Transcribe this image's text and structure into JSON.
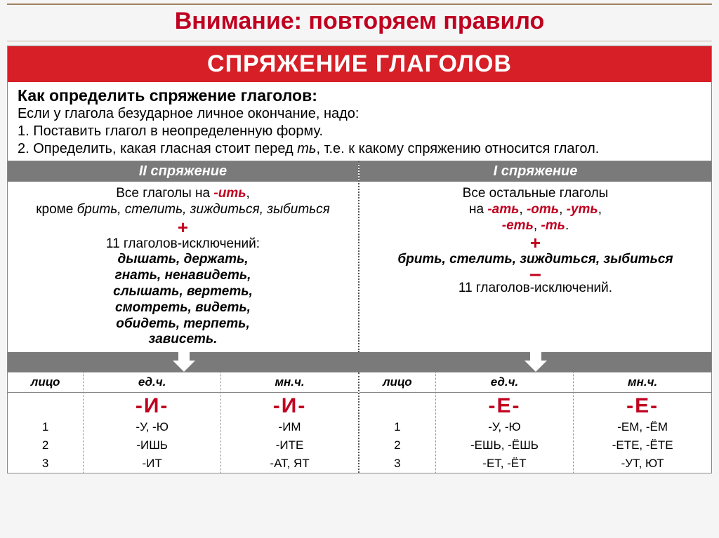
{
  "colors": {
    "title": "#c00020",
    "banner_bg": "#d61f26",
    "banner_fg": "#ffffff",
    "grey_bg": "#7a7a7a",
    "accent": "#c00020"
  },
  "page_title": "Внимание: повторяем правило",
  "banner": "СПРЯЖЕНИЕ ГЛАГОЛОВ",
  "intro": {
    "heading": "Как определить спряжение глаголов:",
    "line1": "Если у глагола безударное личное окончание, надо:",
    "line2": "1. Поставить глагол в неопределенную форму.",
    "line3_a": "2. Определить, какая гласная стоит перед ",
    "line3_em": "ть",
    "line3_b": ", т.е. к какому спряжению относится глагол."
  },
  "left": {
    "header": "II спряжение",
    "l1a": "Все глаголы на ",
    "l1b": "-ить",
    "l1c": ",",
    "l2a": "кроме ",
    "l2b": "брить, стелить, зиждиться, зыбиться",
    "plus": "+",
    "l3": "11 глаголов-исключений:",
    "ex1": "дышать, держать,",
    "ex2": "гнать, ненавидеть,",
    "ex3": "слышать, вертеть,",
    "ex4": "смотреть, видеть,",
    "ex5": "обидеть, терпеть,",
    "ex6": "зависеть."
  },
  "right": {
    "header": "I спряжение",
    "l1": "Все остальные глаголы",
    "l2a": "на ",
    "s1": "-ать",
    "c": ", ",
    "s2": "-оть",
    "s3": "-уть",
    "s4": "-еть",
    "s5": "-ть",
    "dot": ".",
    "plus": "+",
    "l3": "брить, стелить, зиждиться, зыбиться",
    "minus": "–",
    "l4": "11 глаголов-исключений."
  },
  "table": {
    "h_person": "лицо",
    "h_sg": "ед.ч.",
    "h_pl": "мн.ч.",
    "p1": "1",
    "p2": "2",
    "p3": "3",
    "left": {
      "big_sg": "-И-",
      "big_pl": "-И-",
      "sg": [
        "-У, -Ю",
        "-ИШЬ",
        "-ИТ"
      ],
      "pl": [
        "-ИМ",
        "-ИТЕ",
        "-АТ, ЯТ"
      ]
    },
    "right": {
      "big_sg": "-Е-",
      "big_pl": "-Е-",
      "sg": [
        "-У, -Ю",
        "-ЕШЬ, -ЁШЬ",
        "-ЕТ, -ЁТ"
      ],
      "pl": [
        "-ЕМ, -ЁМ",
        "-ЕТЕ, -ЁТЕ",
        "-УТ, ЮТ"
      ]
    }
  }
}
